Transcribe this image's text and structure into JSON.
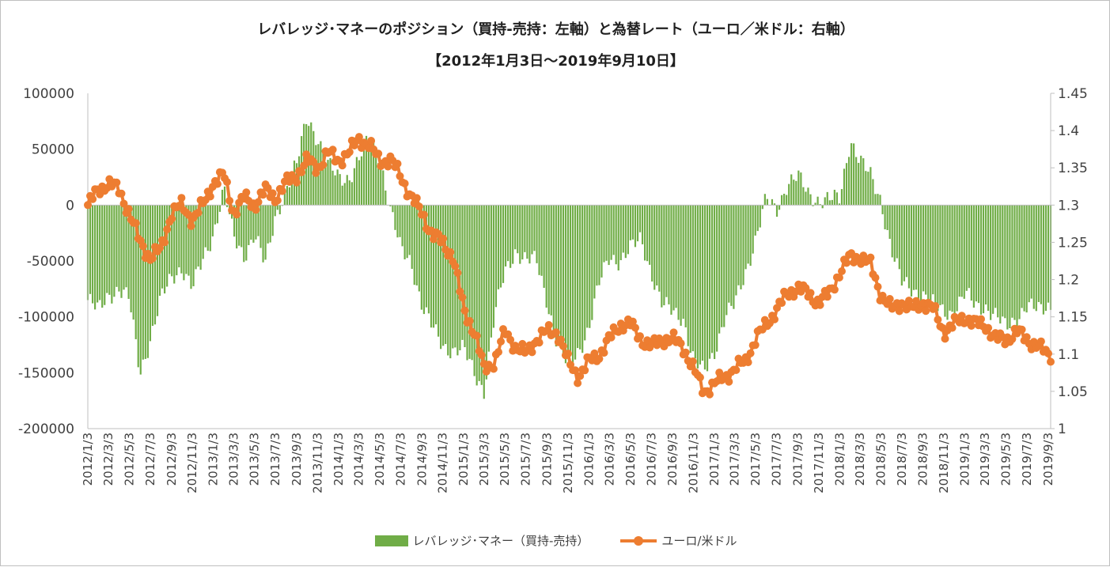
{
  "colors": {
    "bar": "#70ad47",
    "line": "#ed7d31",
    "axis": "#bfbfbf",
    "text": "#404040"
  },
  "chart_data": {
    "type": "bar+line",
    "title": "レバレッジ･マネーのポジション（買持-売持：左軸）と為替レート（ユーロ／米ドル：右軸）",
    "subtitle": "【2012年1月3日～2019年9月10日】",
    "legend_placement": "bottom",
    "grid": false,
    "y_left": {
      "min": -200000,
      "max": 100000,
      "step": 50000,
      "tick_labels": [
        "100000",
        "50000",
        "0",
        "-50000",
        "-100000",
        "-150000",
        "-200000"
      ]
    },
    "y_right": {
      "min": 1.0,
      "max": 1.45,
      "step": 0.05,
      "tick_labels": [
        "1.45",
        "1.4",
        "1.35",
        "1.3",
        "1.25",
        "1.2",
        "1.15",
        "1.1",
        "1.05",
        "1"
      ]
    },
    "x_tick_labels": [
      "2012/1/3",
      "2012/3/3",
      "2012/5/3",
      "2012/7/3",
      "2012/9/3",
      "2012/11/3",
      "2013/1/3",
      "2013/3/3",
      "2013/5/3",
      "2013/7/3",
      "2013/9/3",
      "2013/11/3",
      "2014/1/3",
      "2014/3/3",
      "2014/5/3",
      "2014/7/3",
      "2014/9/3",
      "2014/11/3",
      "2015/1/3",
      "2015/3/3",
      "2015/5/3",
      "2015/7/3",
      "2015/9/3",
      "2015/11/3",
      "2016/1/3",
      "2016/3/3",
      "2016/5/3",
      "2016/7/3",
      "2016/9/3",
      "2016/11/3",
      "2017/1/3",
      "2017/3/3",
      "2017/5/3",
      "2017/7/3",
      "2017/9/3",
      "2017/11/3",
      "2018/1/3",
      "2018/3/3",
      "2018/5/3",
      "2018/7/3",
      "2018/9/3",
      "2018/11/3",
      "2019/1/3",
      "2019/3/3",
      "2019/5/3",
      "2019/7/3",
      "2019/9/3"
    ],
    "series": [
      {
        "name": "レバレッジ･マネー（買持-売持）",
        "type": "bar",
        "axis": "left",
        "dates": [
          "2012/1/3",
          "2012/2/3",
          "2012/3/3",
          "2012/4/3",
          "2012/5/3",
          "2012/6/3",
          "2012/7/3",
          "2012/8/3",
          "2012/9/3",
          "2012/10/3",
          "2012/11/3",
          "2012/12/3",
          "2013/1/3",
          "2013/2/3",
          "2013/3/3",
          "2013/4/3",
          "2013/5/3",
          "2013/6/3",
          "2013/7/3",
          "2013/8/3",
          "2013/9/3",
          "2013/10/3",
          "2013/11/3",
          "2013/12/3",
          "2014/1/3",
          "2014/2/3",
          "2014/3/3",
          "2014/4/3",
          "2014/5/3",
          "2014/6/3",
          "2014/7/3",
          "2014/8/3",
          "2014/9/3",
          "2014/10/3",
          "2014/11/3",
          "2014/12/3",
          "2015/1/3",
          "2015/2/3",
          "2015/3/3",
          "2015/4/3",
          "2015/5/3",
          "2015/6/3",
          "2015/7/3",
          "2015/8/3",
          "2015/9/3",
          "2015/10/3",
          "2015/11/3",
          "2015/12/3",
          "2016/1/3",
          "2016/2/3",
          "2016/3/3",
          "2016/4/3",
          "2016/5/3",
          "2016/6/3",
          "2016/7/3",
          "2016/8/3",
          "2016/9/3",
          "2016/10/3",
          "2016/11/3",
          "2016/12/3",
          "2017/1/3",
          "2017/2/3",
          "2017/3/3",
          "2017/4/3",
          "2017/5/3",
          "2017/6/3",
          "2017/7/3",
          "2017/8/3",
          "2017/9/3",
          "2017/10/3",
          "2017/11/3",
          "2017/12/3",
          "2018/1/3",
          "2018/2/3",
          "2018/3/3",
          "2018/4/3",
          "2018/5/3",
          "2018/6/3",
          "2018/7/3",
          "2018/8/3",
          "2018/9/3",
          "2018/10/3",
          "2018/11/3",
          "2018/12/3",
          "2019/1/3",
          "2019/2/3",
          "2019/3/3",
          "2019/4/3",
          "2019/5/3",
          "2019/6/3",
          "2019/7/3",
          "2019/8/3",
          "2019/9/3"
        ],
        "values": [
          -85000,
          -95000,
          -80000,
          -75000,
          -85000,
          -150000,
          -120000,
          -85000,
          -65000,
          -55000,
          -75000,
          -50000,
          -25000,
          15000,
          -30000,
          -45000,
          -25000,
          -55000,
          -10000,
          15000,
          35000,
          80000,
          60000,
          35000,
          25000,
          25000,
          40000,
          60000,
          45000,
          -5000,
          -40000,
          -50000,
          -90000,
          -110000,
          -125000,
          -130000,
          -130000,
          -150000,
          -165000,
          -100000,
          -60000,
          -40000,
          -50000,
          -50000,
          -85000,
          -125000,
          -145000,
          -130000,
          -110000,
          -70000,
          -45000,
          -50000,
          -40000,
          -30000,
          -60000,
          -90000,
          -95000,
          -100000,
          -140000,
          -150000,
          -130000,
          -100000,
          -90000,
          -60000,
          -30000,
          5000,
          -5000,
          20000,
          25000,
          10000,
          5000,
          5000,
          5000,
          60000,
          40000,
          25000,
          5000,
          -40000,
          -70000,
          -75000,
          -80000,
          -90000,
          -95000,
          -95000,
          -80000,
          -90000,
          -90000,
          -100000,
          -110000,
          -100000,
          -90000,
          -95000,
          -90000
        ]
      },
      {
        "name": "ユーロ/米ドル",
        "type": "line",
        "axis": "right",
        "dates": [
          "2012/1/3",
          "2012/2/3",
          "2012/3/3",
          "2012/4/3",
          "2012/5/3",
          "2012/6/3",
          "2012/7/3",
          "2012/8/3",
          "2012/9/3",
          "2012/10/3",
          "2012/11/3",
          "2012/12/3",
          "2013/1/3",
          "2013/2/3",
          "2013/3/3",
          "2013/4/3",
          "2013/5/3",
          "2013/6/3",
          "2013/7/3",
          "2013/8/3",
          "2013/9/3",
          "2013/10/3",
          "2013/11/3",
          "2013/12/3",
          "2014/1/3",
          "2014/2/3",
          "2014/3/3",
          "2014/4/3",
          "2014/5/3",
          "2014/6/3",
          "2014/7/3",
          "2014/8/3",
          "2014/9/3",
          "2014/10/3",
          "2014/11/3",
          "2014/12/3",
          "2015/1/3",
          "2015/2/3",
          "2015/3/3",
          "2015/4/3",
          "2015/5/3",
          "2015/6/3",
          "2015/7/3",
          "2015/8/3",
          "2015/9/3",
          "2015/10/3",
          "2015/11/3",
          "2015/12/3",
          "2016/1/3",
          "2016/2/3",
          "2016/3/3",
          "2016/4/3",
          "2016/5/3",
          "2016/6/3",
          "2016/7/3",
          "2016/8/3",
          "2016/9/3",
          "2016/10/3",
          "2016/11/3",
          "2016/12/3",
          "2017/1/3",
          "2017/2/3",
          "2017/3/3",
          "2017/4/3",
          "2017/5/3",
          "2017/6/3",
          "2017/7/3",
          "2017/8/3",
          "2017/9/3",
          "2017/10/3",
          "2017/11/3",
          "2017/12/3",
          "2018/1/3",
          "2018/2/3",
          "2018/3/3",
          "2018/4/3",
          "2018/5/3",
          "2018/6/3",
          "2018/7/3",
          "2018/8/3",
          "2018/9/3",
          "2018/10/3",
          "2018/11/3",
          "2018/12/3",
          "2019/1/3",
          "2019/2/3",
          "2019/3/3",
          "2019/4/3",
          "2019/5/3",
          "2019/6/3",
          "2019/7/3",
          "2019/8/3",
          "2019/9/3",
          "2019/9/10"
        ],
        "values": [
          1.3,
          1.32,
          1.33,
          1.32,
          1.29,
          1.25,
          1.23,
          1.24,
          1.29,
          1.3,
          1.28,
          1.3,
          1.33,
          1.34,
          1.29,
          1.31,
          1.3,
          1.32,
          1.31,
          1.33,
          1.34,
          1.36,
          1.35,
          1.37,
          1.36,
          1.37,
          1.39,
          1.38,
          1.36,
          1.36,
          1.34,
          1.31,
          1.29,
          1.26,
          1.25,
          1.23,
          1.16,
          1.13,
          1.08,
          1.09,
          1.13,
          1.11,
          1.1,
          1.12,
          1.13,
          1.13,
          1.09,
          1.07,
          1.09,
          1.1,
          1.12,
          1.14,
          1.14,
          1.12,
          1.11,
          1.12,
          1.12,
          1.11,
          1.08,
          1.05,
          1.06,
          1.07,
          1.08,
          1.09,
          1.12,
          1.14,
          1.16,
          1.18,
          1.19,
          1.18,
          1.17,
          1.18,
          1.21,
          1.23,
          1.23,
          1.22,
          1.18,
          1.16,
          1.17,
          1.16,
          1.17,
          1.16,
          1.13,
          1.14,
          1.15,
          1.14,
          1.14,
          1.12,
          1.12,
          1.13,
          1.12,
          1.11,
          1.1,
          1.1
        ]
      }
    ]
  },
  "legend": {
    "bar_label": "レバレッジ･マネー（買持-売持）",
    "line_label": "ユーロ/米ドル"
  }
}
